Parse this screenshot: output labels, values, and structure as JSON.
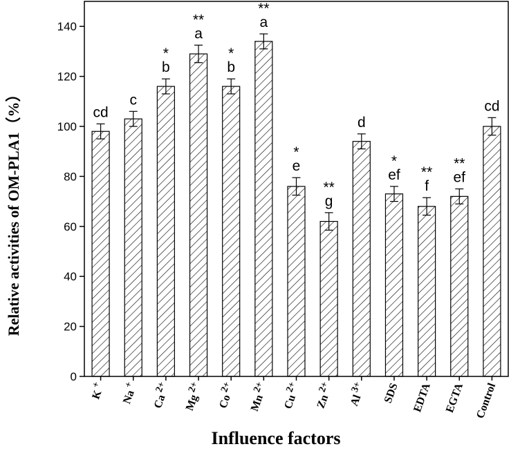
{
  "chart_data": {
    "type": "bar",
    "xlabel": "Influence factors",
    "ylabel": "Relative activities of OM-PLA1（%）",
    "ylim": [
      0,
      150
    ],
    "yticks": [
      0,
      20,
      40,
      60,
      80,
      100,
      120,
      140
    ],
    "grid": false,
    "legend": "none",
    "bar_fill": "hatched",
    "categories": [
      {
        "base": "K",
        "sup": "+"
      },
      {
        "base": "Na",
        "sup": "+"
      },
      {
        "base": "Ca",
        "sup": "2+"
      },
      {
        "base": "Mg",
        "sup": "2+"
      },
      {
        "base": "Co",
        "sup": "2+"
      },
      {
        "base": "Mn",
        "sup": "2+"
      },
      {
        "base": "Cu",
        "sup": "2+"
      },
      {
        "base": "Zn",
        "sup": "2+"
      },
      {
        "base": "Al",
        "sup": "3+"
      },
      {
        "base": "SDS",
        "sup": ""
      },
      {
        "base": "EDTA",
        "sup": ""
      },
      {
        "base": "EGTA",
        "sup": ""
      },
      {
        "base": "Control",
        "sup": ""
      }
    ],
    "values": [
      98,
      103,
      116,
      129,
      116,
      134,
      76,
      62,
      94,
      73,
      68,
      72,
      100
    ],
    "errors": [
      3,
      3,
      3,
      3.5,
      3,
      3,
      3.5,
      3.5,
      3,
      3,
      3.5,
      3,
      3.5
    ],
    "letters": [
      "cd",
      "c",
      "b",
      "a",
      "b",
      "a",
      "e",
      "g",
      "d",
      "ef",
      "f",
      "ef",
      "cd"
    ],
    "significance": [
      "",
      "",
      "*",
      "**",
      "*",
      "**",
      "*",
      "**",
      "",
      "*",
      "**",
      "**",
      ""
    ]
  }
}
